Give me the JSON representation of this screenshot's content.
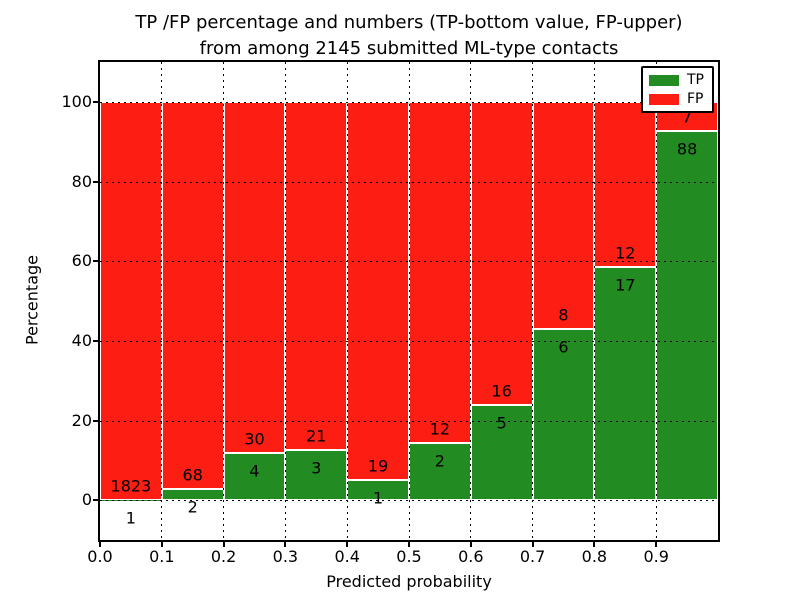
{
  "chart_data": {
    "type": "bar",
    "subtype": "stacked_percentage",
    "title_line1": "TP /FP percentage and numbers (TP-bottom value, FP-upper)",
    "title_line2": "from among 2145 submitted ML-type contacts",
    "total_contacts": 2145,
    "xlabel": "Predicted probability",
    "ylabel": "Percentage",
    "xlim": [
      0.0,
      1.0
    ],
    "ylim": [
      -10,
      110
    ],
    "grid": true,
    "x_ticks": [
      0.0,
      0.1,
      0.2,
      0.3,
      0.4,
      0.5,
      0.6,
      0.7,
      0.8,
      0.9
    ],
    "x_tick_labels": [
      "0.0",
      "0.1",
      "0.2",
      "0.3",
      "0.4",
      "0.5",
      "0.6",
      "0.7",
      "0.8",
      "0.9"
    ],
    "y_ticks": [
      0,
      20,
      40,
      60,
      80,
      100
    ],
    "y_tick_labels": [
      "0",
      "20",
      "40",
      "60",
      "80",
      "100"
    ],
    "legend": [
      {
        "label": "TP",
        "color": "#228b22"
      },
      {
        "label": "FP",
        "color": "#fc1d13"
      }
    ],
    "bins": [
      {
        "x0": 0.0,
        "x1": 0.1,
        "tp": 1,
        "fp": 1823,
        "tp_pct": 0.05
      },
      {
        "x0": 0.1,
        "x1": 0.2,
        "tp": 2,
        "fp": 68,
        "tp_pct": 2.86
      },
      {
        "x0": 0.2,
        "x1": 0.3,
        "tp": 4,
        "fp": 30,
        "tp_pct": 11.76
      },
      {
        "x0": 0.3,
        "x1": 0.4,
        "tp": 3,
        "fp": 21,
        "tp_pct": 12.5
      },
      {
        "x0": 0.4,
        "x1": 0.5,
        "tp": 1,
        "fp": 19,
        "tp_pct": 5.0
      },
      {
        "x0": 0.5,
        "x1": 0.6,
        "tp": 2,
        "fp": 12,
        "tp_pct": 14.29
      },
      {
        "x0": 0.6,
        "x1": 0.7,
        "tp": 5,
        "fp": 16,
        "tp_pct": 23.81
      },
      {
        "x0": 0.7,
        "x1": 0.8,
        "tp": 6,
        "fp": 8,
        "tp_pct": 42.86
      },
      {
        "x0": 0.8,
        "x1": 0.9,
        "tp": 17,
        "fp": 12,
        "tp_pct": 58.62
      },
      {
        "x0": 0.9,
        "x1": 1.0,
        "tp": 88,
        "fp": 7,
        "tp_pct": 92.63
      }
    ]
  }
}
